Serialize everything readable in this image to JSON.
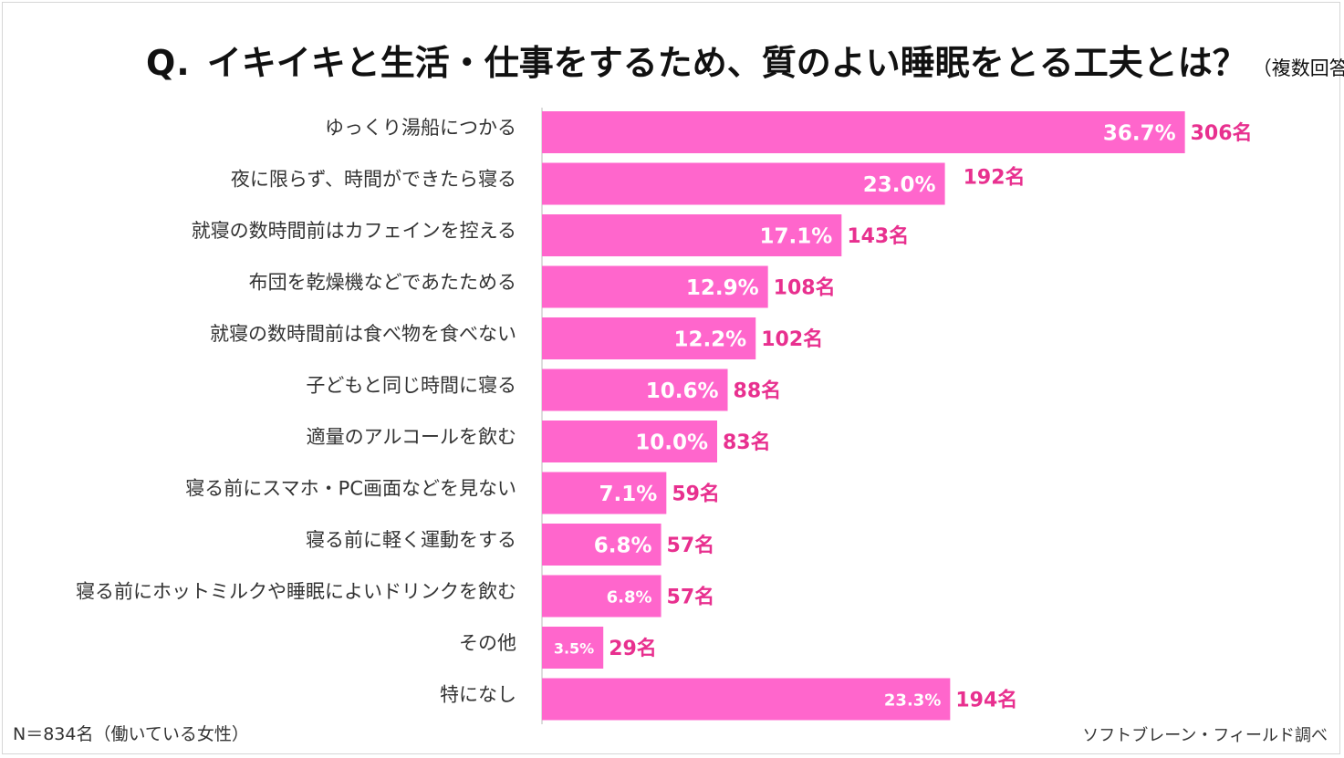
{
  "title": {
    "q": "Q.",
    "main": "イキイキと生活・仕事をするため、質のよい睡眠をとる工夫とは？",
    "sub": "（複数回答）"
  },
  "note": "N＝834名（働いている女性）",
  "source": "ソフトブレーン・フィールド調べ",
  "colors": {
    "bar": "#ff66cc",
    "count_text": "#e8308f",
    "pct_text": "#ffffff"
  },
  "chart_data": {
    "type": "bar",
    "orientation": "horizontal",
    "categories": [
      "ゆっくり湯船につかる",
      "夜に限らず、時間ができたら寝る",
      "就寝の数時間前はカフェインを控える",
      "布団を乾燥機などであたためる",
      "就寝の数時間前は食べ物を食べない",
      "子どもと同じ時間に寝る",
      "適量のアルコールを飲む",
      "寝る前にスマホ・PC画面などを見ない",
      "寝る前に軽く運動をする",
      "寝る前にホットミルクや睡眠によいドリンクを飲む",
      "その他",
      "特になし"
    ],
    "values": [
      36.7,
      23.0,
      17.1,
      12.9,
      12.2,
      10.6,
      10.0,
      7.1,
      6.8,
      6.8,
      3.5,
      23.3
    ],
    "percent_labels": [
      "36.7%",
      "23.0%",
      "17.1%",
      "12.9%",
      "12.2%",
      "10.6%",
      "10.0%",
      "7.1%",
      "6.8%",
      "6.8%",
      "3.5%",
      "23.3%"
    ],
    "counts": [
      "306名",
      "192名",
      "143名",
      "108名",
      "102名",
      "88名",
      "83名",
      "59名",
      "57名",
      "57名",
      "29名",
      "194名"
    ],
    "xlim": [
      0,
      100
    ],
    "grid": false,
    "legend": "none"
  }
}
